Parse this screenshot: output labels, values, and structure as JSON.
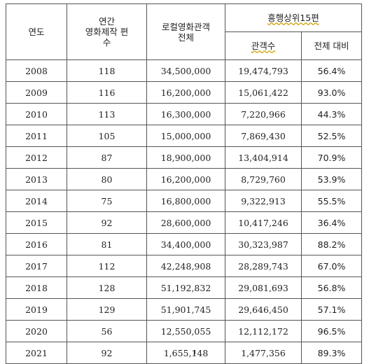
{
  "headers": {
    "year": "연도",
    "annual_films_line1": "연간",
    "annual_films_line2": "영화제작 편",
    "annual_films_line3": "수",
    "local_audience_line1": "로컬영화관객",
    "local_audience_line2": "전체",
    "top15": "흥행상위15편",
    "top15_audience": "관객수",
    "top15_share": "전제 대비"
  },
  "rows": [
    {
      "year": "2008",
      "films": "118",
      "total": "34,500,000",
      "top15": "19,474,793",
      "share": "56.4%"
    },
    {
      "year": "2009",
      "films": "116",
      "total": "16,200,000",
      "top15": "15,061,422",
      "share": "93.0%"
    },
    {
      "year": "2010",
      "films": "113",
      "total": "16,300,000",
      "top15": "7,220,966",
      "share": "44.3%"
    },
    {
      "year": "2011",
      "films": "105",
      "total": "15,000,000",
      "top15": "7,869,430",
      "share": "52.5%"
    },
    {
      "year": "2012",
      "films": "87",
      "total": "18,900,000",
      "top15": "13,404,914",
      "share": "70.9%"
    },
    {
      "year": "2013",
      "films": "80",
      "total": "16,200,000",
      "top15": "8,729,760",
      "share": "53.9%"
    },
    {
      "year": "2014",
      "films": "75",
      "total": "16,800,000",
      "top15": "9,322,913",
      "share": "55.5%"
    },
    {
      "year": "2015",
      "films": "92",
      "total": "28,600,000",
      "top15": "10,417,246",
      "share": "36.4%"
    },
    {
      "year": "2016",
      "films": "81",
      "total": "34,400,000",
      "top15": "30,323,987",
      "share": "88.2%"
    },
    {
      "year": "2017",
      "films": "112",
      "total": "42,248,908",
      "top15": "28,289,743",
      "share": "67.0%"
    },
    {
      "year": "2018",
      "films": "128",
      "total": "51,192,832",
      "top15": "29,081,693",
      "share": "56.8%"
    },
    {
      "year": "2019",
      "films": "129",
      "total": "51,901,745",
      "top15": "29,646,450",
      "share": "57.1%"
    },
    {
      "year": "2020",
      "films": "56",
      "total": "12,550,055",
      "top15": "12,112,172",
      "share": "96.5%"
    },
    {
      "year": "2021",
      "films": "92",
      "total": "1,655,148",
      "top15": "1,477,356",
      "share": "89.3%"
    }
  ]
}
